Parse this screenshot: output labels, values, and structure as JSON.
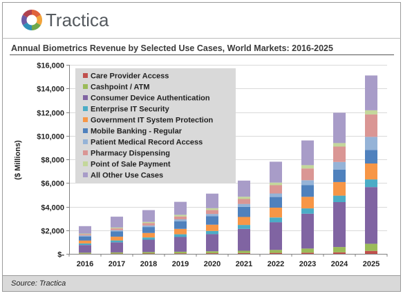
{
  "brand": {
    "name": "Tractica"
  },
  "footer": {
    "source": "Source: Tractica"
  },
  "chart_data": {
    "type": "bar",
    "stacked": true,
    "title": "Annual Biometrics Revenue by Selected Use Cases, World Markets: 2016-2025",
    "ylabel": "($ Millions)",
    "xlabel": "",
    "ylim": [
      0,
      16000
    ],
    "yticks": [
      0,
      2000,
      4000,
      6000,
      8000,
      10000,
      12000,
      14000,
      16000
    ],
    "ytick_labels": [
      "$-",
      "$2,000",
      "$4,000",
      "$6,000",
      "$8,000",
      "$10,000",
      "$12,000",
      "$14,000",
      "$16,000"
    ],
    "grid": true,
    "legend_position": "top-left",
    "categories": [
      "2016",
      "2017",
      "2018",
      "2019",
      "2020",
      "2021",
      "2022",
      "2023",
      "2024",
      "2025"
    ],
    "series": [
      {
        "name": "Care Provider Access",
        "color": "#c0504d",
        "values": [
          20,
          25,
          30,
          40,
          50,
          65,
          80,
          100,
          130,
          250
        ]
      },
      {
        "name": "Cashpoint / ATM",
        "color": "#9bbb59",
        "values": [
          80,
          100,
          120,
          140,
          170,
          200,
          250,
          350,
          450,
          600
        ]
      },
      {
        "name": "Consumer Device Authentication",
        "color": "#8064a2",
        "values": [
          650,
          850,
          1050,
          1250,
          1450,
          1850,
          2350,
          2950,
          3800,
          4800
        ]
      },
      {
        "name": "Enterprise IT Security",
        "color": "#4bacc6",
        "values": [
          130,
          160,
          190,
          230,
          270,
          330,
          400,
          450,
          550,
          650
        ]
      },
      {
        "name": "Government IT System Protection",
        "color": "#f79646",
        "values": [
          250,
          320,
          380,
          450,
          530,
          680,
          830,
          980,
          1150,
          1350
        ]
      },
      {
        "name": "Mobile Banking - Regular",
        "color": "#4f81bd",
        "values": [
          350,
          450,
          500,
          650,
          720,
          850,
          900,
          1000,
          1050,
          1150
        ]
      },
      {
        "name": "Patient Medical Record Access",
        "color": "#95b3d7",
        "values": [
          80,
          100,
          130,
          160,
          190,
          250,
          300,
          400,
          650,
          1100
        ]
      },
      {
        "name": "Pharmacy Dispensing",
        "color": "#da9694",
        "values": [
          100,
          150,
          200,
          250,
          330,
          420,
          700,
          1000,
          1300,
          1900
        ]
      },
      {
        "name": "Point of Sale Payment",
        "color": "#c4d79b",
        "values": [
          60,
          80,
          100,
          130,
          160,
          190,
          220,
          280,
          300,
          350
        ]
      },
      {
        "name": "All Other Use Cases",
        "color": "#a89cc8",
        "values": [
          630,
          915,
          1000,
          1100,
          1230,
          1365,
          1770,
          2090,
          2570,
          2950
        ]
      }
    ]
  }
}
